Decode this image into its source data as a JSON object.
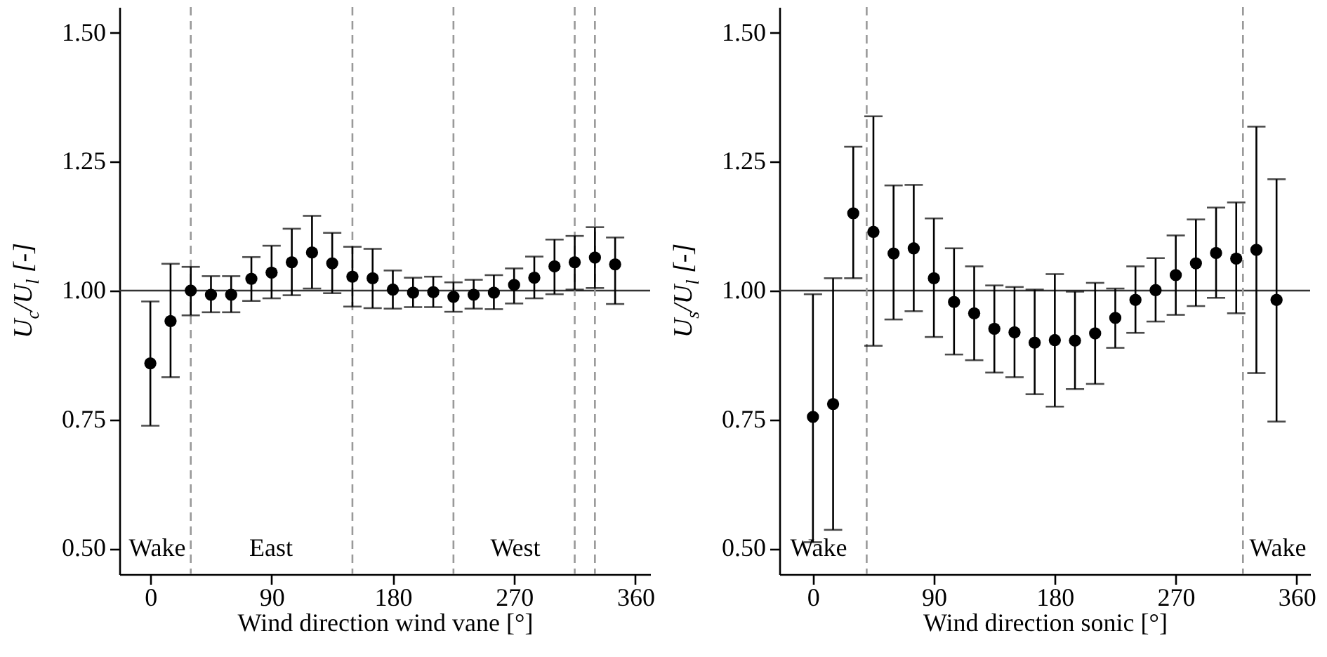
{
  "chart_data": [
    {
      "type": "scatter",
      "xlabel": "Wind direction wind vane [°]",
      "ylabel": "U$_{c}$/U$_{l}$ [-]",
      "color": "#000000",
      "marker": "circle",
      "x": [
        0,
        15,
        30,
        45,
        60,
        75,
        90,
        105,
        120,
        135,
        150,
        165,
        180,
        195,
        210,
        225,
        240,
        255,
        270,
        285,
        300,
        315,
        330,
        345
      ],
      "values": [
        0.859,
        0.941,
        1.0,
        0.992,
        0.992,
        1.023,
        1.035,
        1.055,
        1.074,
        1.053,
        1.027,
        1.024,
        1.002,
        0.996,
        0.997,
        0.988,
        0.992,
        0.996,
        1.011,
        1.025,
        1.047,
        1.055,
        1.064,
        1.051
      ],
      "errors": [
        [
          0.738,
          0.979
        ],
        [
          0.832,
          1.052
        ],
        [
          0.952,
          1.046
        ],
        [
          0.958,
          1.028
        ],
        [
          0.958,
          1.028
        ],
        [
          0.98,
          1.065
        ],
        [
          0.985,
          1.087
        ],
        [
          0.991,
          1.12
        ],
        [
          1.004,
          1.145
        ],
        [
          0.995,
          1.112
        ],
        [
          0.969,
          1.085
        ],
        [
          0.966,
          1.081
        ],
        [
          0.965,
          1.039
        ],
        [
          0.968,
          1.025
        ],
        [
          0.968,
          1.027
        ],
        [
          0.959,
          1.016
        ],
        [
          0.965,
          1.021
        ],
        [
          0.964,
          1.03
        ],
        [
          0.975,
          1.043
        ],
        [
          0.985,
          1.066
        ],
        [
          0.993,
          1.099
        ],
        [
          1.002,
          1.106
        ],
        [
          1.005,
          1.123
        ],
        [
          0.974,
          1.103
        ]
      ],
      "xlim": [
        -23,
        371
      ],
      "xticks": [
        0,
        90,
        180,
        270,
        360
      ],
      "ylim": [
        0.45,
        1.55
      ],
      "yticks": [
        {
          "value": 0.5,
          "label": "0.50"
        },
        {
          "value": 0.75,
          "label": "0.75"
        },
        {
          "value": 1,
          "label": "1.00"
        },
        1.25,
        {
          "value": 1.5,
          "label": "1.50"
        }
      ],
      "ref_lines": [
        {
          "axis": "y",
          "value": 1,
          "color": "#333333",
          "line_style": "solid"
        },
        {
          "axis": "x",
          "value": 30,
          "color": "#999999",
          "line_style": "dashed"
        },
        {
          "axis": "x",
          "value": 150,
          "color": "#999999",
          "line_style": "dashed"
        },
        {
          "axis": "x",
          "value": 225,
          "color": "#999999",
          "line_style": "dashed"
        },
        {
          "axis": "x",
          "value": 315,
          "color": "#999999",
          "line_style": "dashed"
        },
        {
          "axis": "x",
          "value": 330,
          "color": "#999999",
          "line_style": "dashed"
        }
      ],
      "annotations": [
        "Wake",
        "East",
        "West"
      ]
    },
    {
      "type": "scatter",
      "xlabel": "Wind direction sonic [°]",
      "ylabel": "U$_{s}$/U$_{l}$ [-]",
      "color": "#000000",
      "marker": "circle",
      "x": [
        0,
        15,
        30,
        45,
        60,
        75,
        90,
        105,
        120,
        135,
        150,
        165,
        180,
        195,
        210,
        225,
        240,
        255,
        270,
        285,
        300,
        315,
        330,
        345
      ],
      "values": [
        0.755,
        0.78,
        1.15,
        1.114,
        1.072,
        1.082,
        1.024,
        0.978,
        0.956,
        0.926,
        0.919,
        0.899,
        0.904,
        0.903,
        0.917,
        0.947,
        0.982,
        1.001,
        1.03,
        1.053,
        1.073,
        1.062,
        1.079,
        0.982
      ],
      "errors": [
        [
          0.512,
          0.993
        ],
        [
          0.536,
          1.024
        ],
        [
          1.024,
          1.279
        ],
        [
          0.893,
          1.338
        ],
        [
          0.944,
          1.204
        ],
        [
          0.96,
          1.205
        ],
        [
          0.91,
          1.14
        ],
        [
          0.876,
          1.082
        ],
        [
          0.865,
          1.047
        ],
        [
          0.841,
          1.01
        ],
        [
          0.832,
          1.007
        ],
        [
          0.799,
          1.002
        ],
        [
          0.775,
          1.032
        ],
        [
          0.809,
          0.998
        ],
        [
          0.819,
          1.015
        ],
        [
          0.889,
          1.004
        ],
        [
          0.918,
          1.047
        ],
        [
          0.94,
          1.063
        ],
        [
          0.953,
          1.107
        ],
        [
          0.97,
          1.138
        ],
        [
          0.986,
          1.161
        ],
        [
          0.956,
          1.171
        ],
        [
          0.84,
          1.318
        ],
        [
          0.746,
          1.216
        ]
      ],
      "xlim": [
        -25,
        370
      ],
      "xticks": [
        0,
        90,
        180,
        270,
        360
      ],
      "ylim": [
        0.45,
        1.55
      ],
      "yticks": [
        {
          "value": 0.5,
          "label": "0.50"
        },
        {
          "value": 0.75,
          "label": "0.75"
        },
        {
          "value": 1,
          "label": "1.00"
        },
        1.25,
        {
          "value": 1.5,
          "label": "1.50"
        }
      ],
      "ref_lines": [
        {
          "axis": "y",
          "value": 1,
          "color": "#333333",
          "line_style": "solid"
        },
        {
          "axis": "x",
          "value": 40,
          "color": "#999999",
          "line_style": "dashed"
        },
        {
          "axis": "x",
          "value": 320,
          "color": "#999999",
          "line_style": "dashed"
        }
      ],
      "annotations": [
        "Wake",
        "Wake"
      ]
    }
  ]
}
